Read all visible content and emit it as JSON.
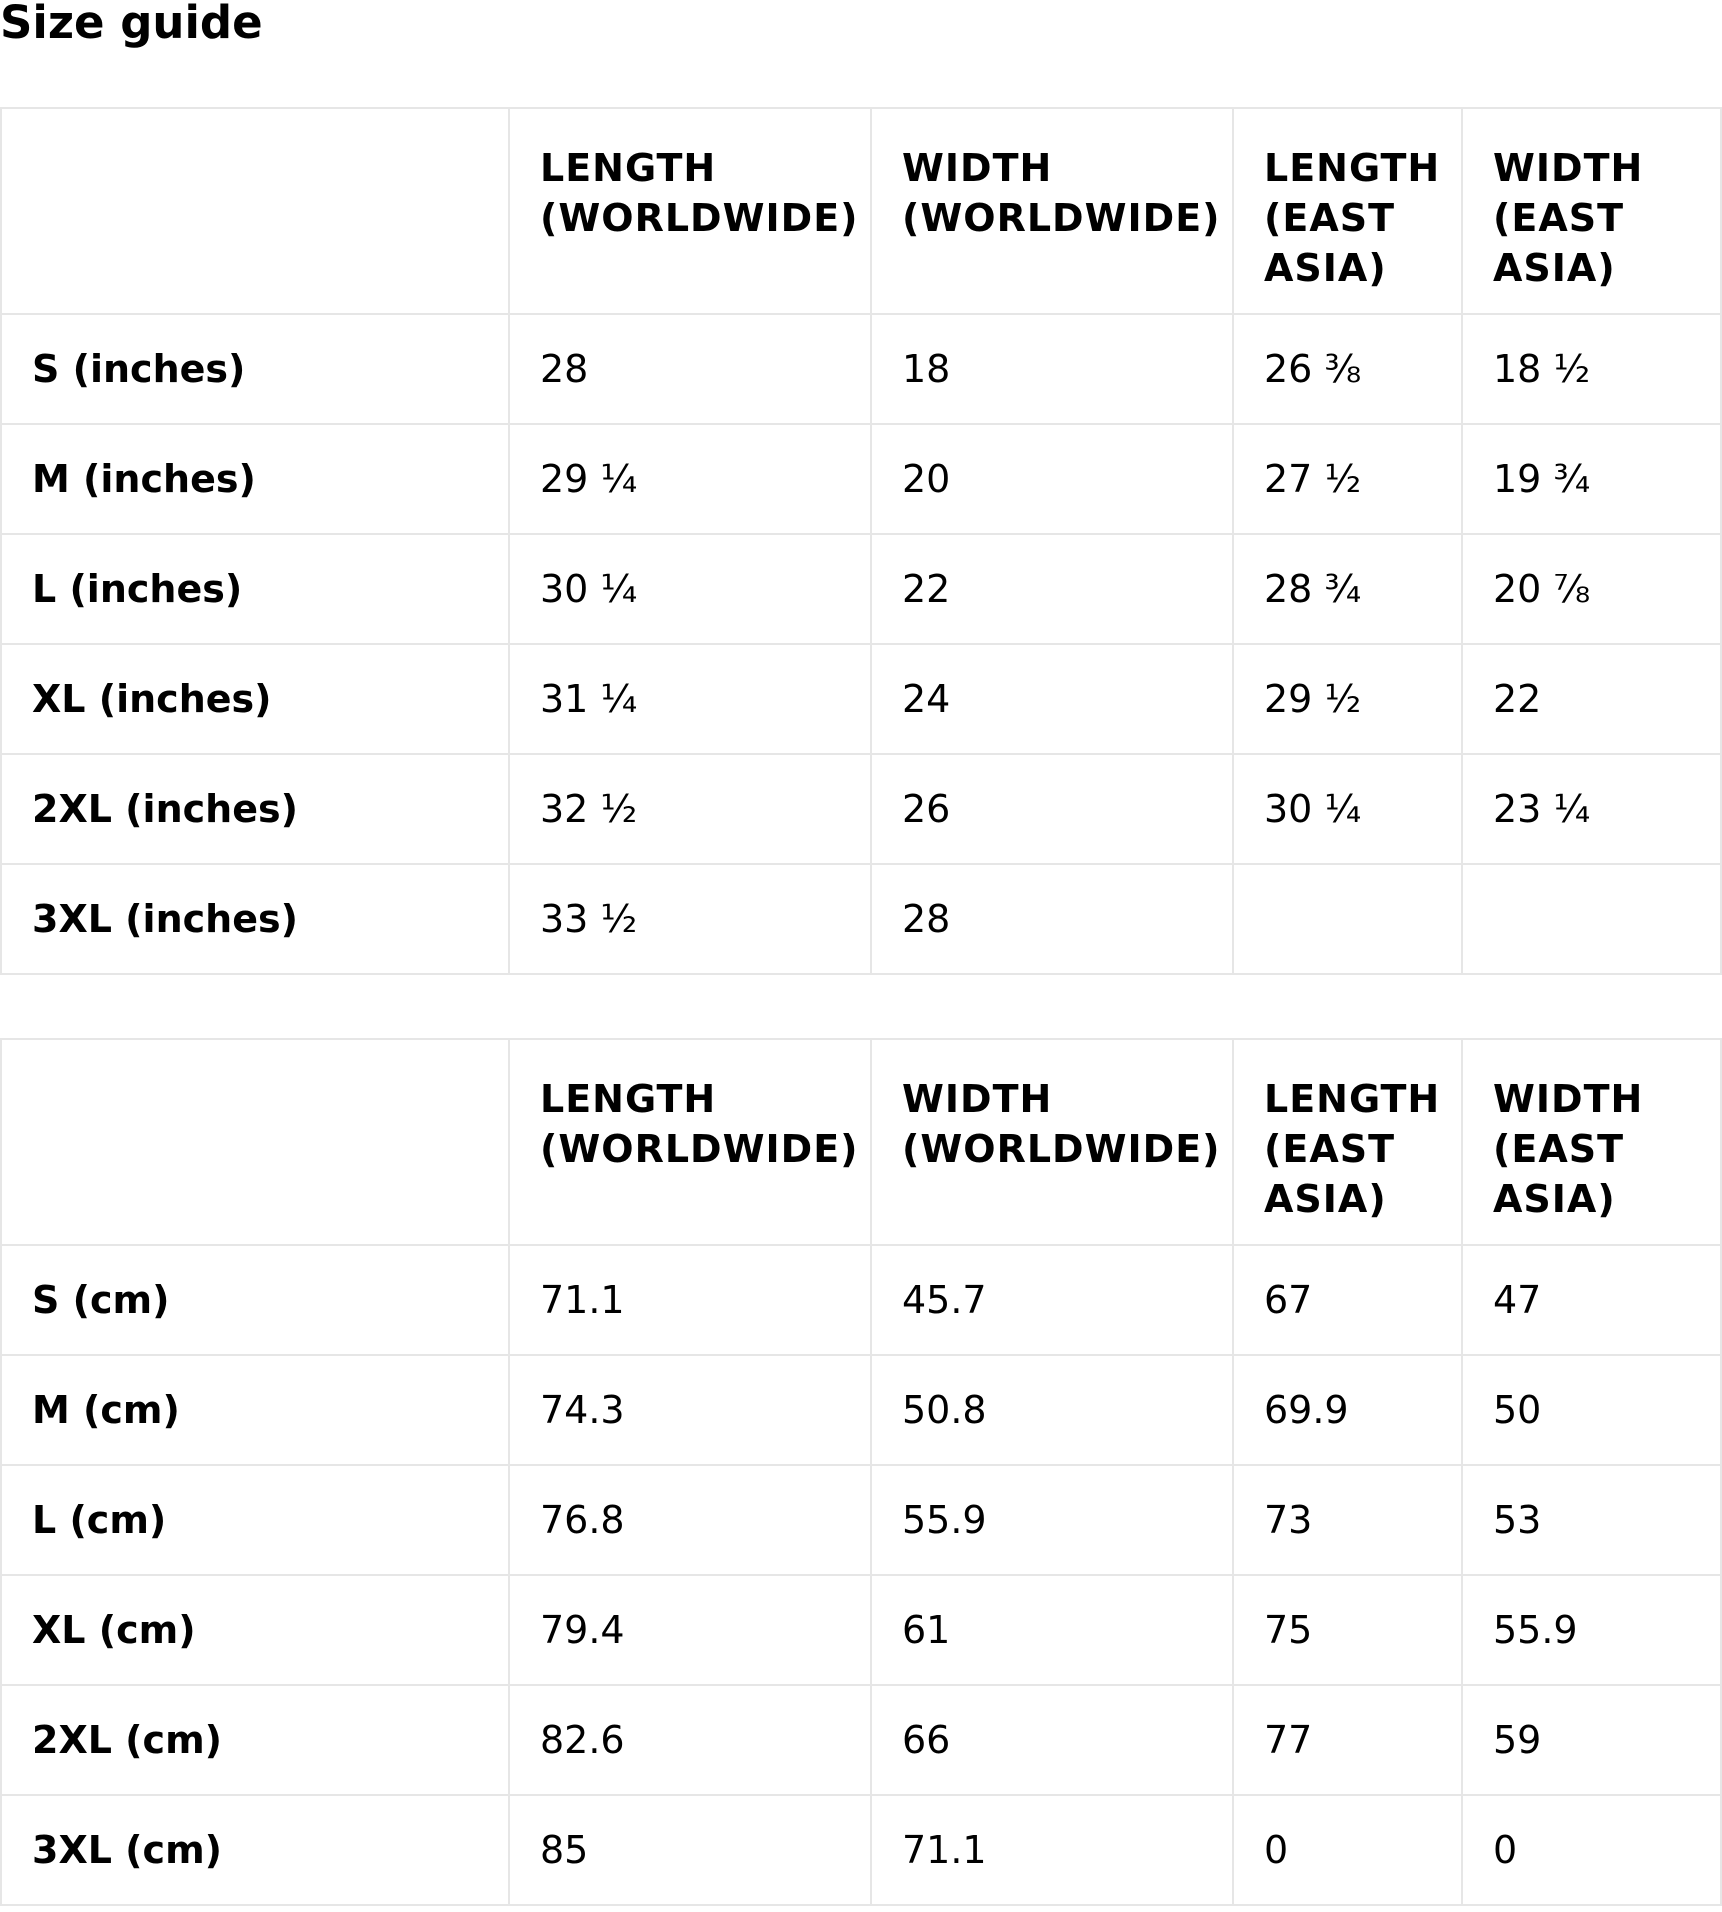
{
  "page": {
    "title": "Size guide"
  },
  "tables": [
    {
      "headers": [
        "",
        "LENGTH (WORLDWIDE)",
        "WIDTH (WORLDWIDE)",
        "LENGTH (EAST ASIA)",
        "WIDTH (EAST ASIA)"
      ],
      "rows": [
        {
          "label": "S (inches)",
          "cells": [
            "28",
            "18",
            "26 ⅜",
            "18 ½"
          ]
        },
        {
          "label": "M (inches)",
          "cells": [
            "29 ¼",
            "20",
            "27 ½",
            "19 ¾"
          ]
        },
        {
          "label": "L (inches)",
          "cells": [
            "30 ¼",
            "22",
            "28 ¾",
            "20 ⅞"
          ]
        },
        {
          "label": "XL (inches)",
          "cells": [
            "31 ¼",
            "24",
            "29 ½",
            "22"
          ]
        },
        {
          "label": "2XL (inches)",
          "cells": [
            "32 ½",
            "26",
            "30 ¼",
            "23 ¼"
          ]
        },
        {
          "label": "3XL (inches)",
          "cells": [
            "33 ½",
            "28",
            "",
            ""
          ]
        }
      ]
    },
    {
      "headers": [
        "",
        "LENGTH (WORLDWIDE)",
        "WIDTH (WORLDWIDE)",
        "LENGTH (EAST ASIA)",
        "WIDTH (EAST ASIA)"
      ],
      "rows": [
        {
          "label": "S (cm)",
          "cells": [
            "71.1",
            "45.7",
            "67",
            "47"
          ]
        },
        {
          "label": "M (cm)",
          "cells": [
            "74.3",
            "50.8",
            "69.9",
            "50"
          ]
        },
        {
          "label": "L (cm)",
          "cells": [
            "76.8",
            "55.9",
            "73",
            "53"
          ]
        },
        {
          "label": "XL (cm)",
          "cells": [
            "79.4",
            "61",
            "75",
            "55.9"
          ]
        },
        {
          "label": "2XL (cm)",
          "cells": [
            "82.6",
            "66",
            "77",
            "59"
          ]
        },
        {
          "label": "3XL (cm)",
          "cells": [
            "85",
            "71.1",
            "0",
            "0"
          ]
        }
      ]
    }
  ]
}
